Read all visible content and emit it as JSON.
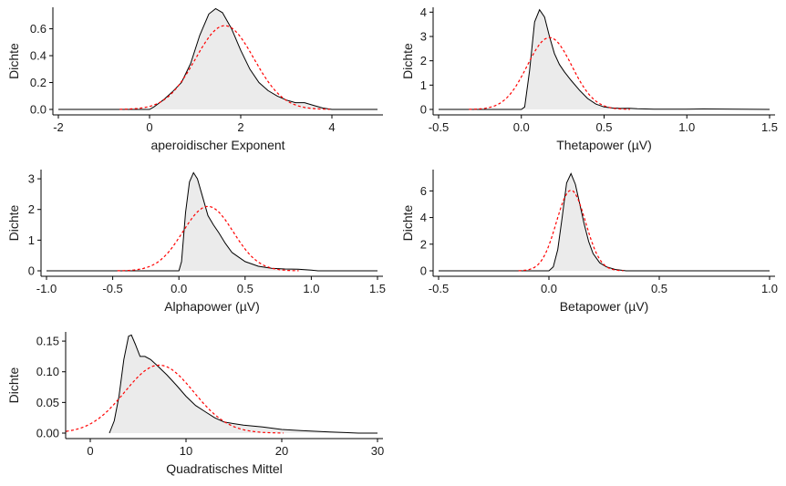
{
  "chart_data": [
    {
      "type": "area",
      "xlabel": "aperoidischer Exponent",
      "ylabel": "Dichte",
      "xlim": [
        -2,
        5
      ],
      "ylim": [
        0,
        0.76
      ],
      "xticks": [
        -2,
        0,
        2,
        4
      ],
      "yticks": [
        0.0,
        0.2,
        0.4,
        0.6
      ],
      "yticklabels": [
        "0.0",
        "0.2",
        "0.4",
        "0.6"
      ],
      "xticklabels": [
        "-2",
        "0",
        "2",
        "4"
      ],
      "series": [
        {
          "role": "empirical density",
          "color": "#000000",
          "fill": "#ebebeb",
          "x": [
            -2,
            0.0,
            0.1,
            0.3,
            0.5,
            0.7,
            0.9,
            1.1,
            1.3,
            1.45,
            1.6,
            1.8,
            2.0,
            2.2,
            2.4,
            2.6,
            2.8,
            3.0,
            3.2,
            3.4,
            3.6,
            3.8,
            4.0,
            5
          ],
          "y": [
            0.0,
            0.0,
            0.02,
            0.07,
            0.13,
            0.2,
            0.34,
            0.55,
            0.71,
            0.75,
            0.72,
            0.6,
            0.44,
            0.3,
            0.2,
            0.14,
            0.1,
            0.07,
            0.05,
            0.05,
            0.03,
            0.01,
            0.0,
            0.0
          ]
        },
        {
          "role": "normal density",
          "color": "#ff0000",
          "mean": 1.65,
          "sd": 0.64
        }
      ]
    },
    {
      "type": "area",
      "xlabel": "Thetapower (µV)",
      "ylabel": "Dichte",
      "xlim": [
        -0.5,
        1.5
      ],
      "ylim": [
        0,
        4.2
      ],
      "xticks": [
        -0.5,
        0.0,
        0.5,
        1.0,
        1.5
      ],
      "xticklabels": [
        "-0.5",
        "0.0",
        "0.5",
        "1.0",
        "1.5"
      ],
      "yticks": [
        0,
        1,
        2,
        3,
        4
      ],
      "yticklabels": [
        "0",
        "1",
        "2",
        "3",
        "4"
      ],
      "series": [
        {
          "role": "empirical density",
          "color": "#000000",
          "fill": "#ebebeb",
          "x": [
            -0.5,
            0.0,
            0.02,
            0.05,
            0.08,
            0.11,
            0.14,
            0.17,
            0.2,
            0.23,
            0.26,
            0.3,
            0.35,
            0.4,
            0.45,
            0.5,
            0.55,
            0.6,
            0.65,
            0.7,
            0.8,
            1.0,
            1.1,
            1.5
          ],
          "y": [
            0.0,
            0.0,
            0.1,
            1.6,
            3.6,
            4.1,
            3.8,
            3.0,
            2.3,
            1.85,
            1.55,
            1.2,
            0.8,
            0.45,
            0.22,
            0.1,
            0.06,
            0.04,
            0.05,
            0.03,
            0.01,
            0.01,
            0.02,
            0.0
          ]
        },
        {
          "role": "normal density",
          "color": "#ff0000",
          "mean": 0.17,
          "sd": 0.135
        }
      ]
    },
    {
      "type": "area",
      "xlabel": "Alphapower (µV)",
      "ylabel": "Dichte",
      "xlim": [
        -1.0,
        1.5
      ],
      "ylim": [
        0,
        3.3
      ],
      "xticks": [
        -1.0,
        -0.5,
        0.0,
        0.5,
        1.0,
        1.5
      ],
      "xticklabels": [
        "-1.0",
        "-0.5",
        "0.0",
        "0.5",
        "1.0",
        "1.5"
      ],
      "yticks": [
        0,
        1,
        2,
        3
      ],
      "yticklabels": [
        "0",
        "1",
        "2",
        "3"
      ],
      "series": [
        {
          "role": "empirical density",
          "color": "#000000",
          "fill": "#ebebeb",
          "x": [
            -1.0,
            0.0,
            0.02,
            0.05,
            0.08,
            0.11,
            0.14,
            0.18,
            0.22,
            0.26,
            0.3,
            0.35,
            0.4,
            0.5,
            0.6,
            0.7,
            0.8,
            0.9,
            1.0,
            1.05,
            1.5
          ],
          "y": [
            0.0,
            0.0,
            0.3,
            1.9,
            2.9,
            3.2,
            3.0,
            2.4,
            1.8,
            1.5,
            1.25,
            0.9,
            0.6,
            0.3,
            0.15,
            0.08,
            0.06,
            0.05,
            0.02,
            0.0,
            0.0
          ]
        },
        {
          "role": "normal density",
          "color": "#ff0000",
          "mean": 0.22,
          "sd": 0.19
        }
      ]
    },
    {
      "type": "area",
      "xlabel": "Betapower (µV)",
      "ylabel": "Dichte",
      "xlim": [
        -0.5,
        1.0
      ],
      "ylim": [
        0,
        7.6
      ],
      "xticks": [
        -0.5,
        0.0,
        0.5,
        1.0
      ],
      "xticklabels": [
        "-0.5",
        "0.0",
        "0.5",
        "1.0"
      ],
      "yticks": [
        0,
        2,
        4,
        6
      ],
      "yticklabels": [
        "0",
        "2",
        "4",
        "6"
      ],
      "series": [
        {
          "role": "empirical density",
          "color": "#000000",
          "fill": "#ebebeb",
          "x": [
            -0.5,
            0.0,
            0.02,
            0.04,
            0.06,
            0.08,
            0.1,
            0.12,
            0.14,
            0.16,
            0.18,
            0.2,
            0.23,
            0.26,
            0.3,
            0.35,
            1.0
          ],
          "y": [
            0.0,
            0.0,
            0.3,
            1.6,
            4.0,
            6.6,
            7.3,
            6.5,
            5.0,
            3.5,
            2.2,
            1.3,
            0.6,
            0.3,
            0.1,
            0.0,
            0.0
          ]
        },
        {
          "role": "normal density",
          "color": "#ff0000",
          "mean": 0.1,
          "sd": 0.066
        }
      ]
    },
    {
      "type": "area",
      "xlabel": "Quadratisches Mittel",
      "ylabel": "Dichte",
      "xlim": [
        -2,
        30
      ],
      "ylim": [
        0,
        0.165
      ],
      "xticks": [
        0,
        10,
        20,
        30
      ],
      "xticklabels": [
        "0",
        "10",
        "20",
        "30"
      ],
      "yticks": [
        0.0,
        0.05,
        0.1,
        0.15
      ],
      "yticklabels": [
        "0.00",
        "0.05",
        "0.10",
        "0.15"
      ],
      "series": [
        {
          "role": "empirical density",
          "color": "#000000",
          "fill": "#ebebeb",
          "x": [
            2.0,
            2.5,
            3.0,
            3.5,
            4.0,
            4.3,
            4.7,
            5.2,
            5.7,
            6.3,
            7.0,
            8.0,
            9.0,
            10.0,
            11.0,
            12.0,
            13.0,
            14.0,
            16.0,
            18.0,
            20.0,
            22.0,
            25.0,
            28.0,
            30.0
          ],
          "y": [
            0.0,
            0.02,
            0.06,
            0.12,
            0.158,
            0.16,
            0.145,
            0.125,
            0.125,
            0.12,
            0.11,
            0.095,
            0.078,
            0.06,
            0.045,
            0.035,
            0.025,
            0.018,
            0.013,
            0.01,
            0.006,
            0.004,
            0.002,
            0.0,
            0.0
          ]
        },
        {
          "role": "normal density",
          "color": "#ff0000",
          "mean": 7.2,
          "sd": 3.6
        }
      ]
    }
  ]
}
